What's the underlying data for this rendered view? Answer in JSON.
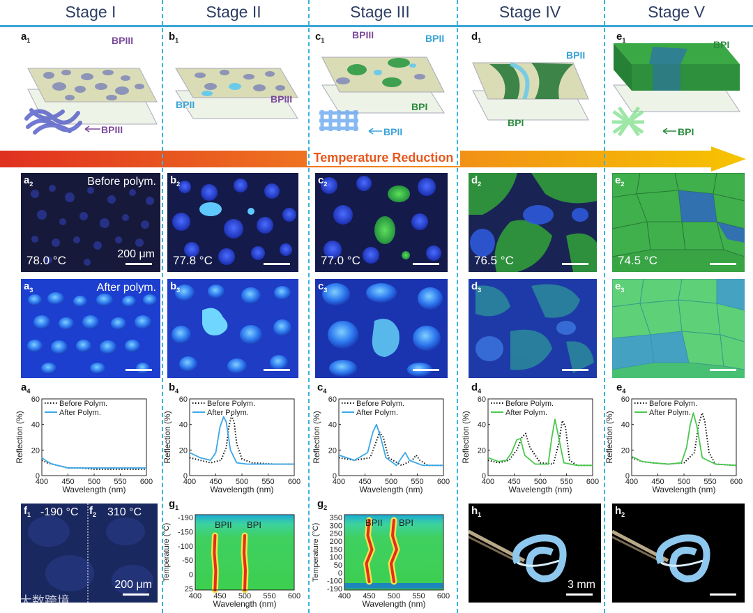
{
  "stages": [
    "Stage I",
    "Stage II",
    "Stage III",
    "Stage IV",
    "Stage V"
  ],
  "arrow_label": "Temperature Reduction",
  "row1": {
    "a1": {
      "label": "a",
      "sub": "1",
      "callouts": [
        "BPIII",
        "BPIII"
      ]
    },
    "b1": {
      "label": "b",
      "sub": "1",
      "callouts": [
        "BPII",
        "BPIII"
      ]
    },
    "c1": {
      "label": "c",
      "sub": "1",
      "callouts": [
        "BPIII",
        "BPII",
        "BPI",
        "BPII"
      ]
    },
    "d1": {
      "label": "d",
      "sub": "1",
      "callouts": [
        "BPII",
        "BPI"
      ]
    },
    "e1": {
      "label": "e",
      "sub": "1",
      "callouts": [
        "BPI",
        "BPI"
      ]
    }
  },
  "row2": [
    {
      "label": "a",
      "sub": "2",
      "temp": "78.0 °C",
      "note": "Before polym.",
      "scale": "200 μm"
    },
    {
      "label": "b",
      "sub": "2",
      "temp": "77.8 °C"
    },
    {
      "label": "c",
      "sub": "2",
      "temp": "77.0 °C"
    },
    {
      "label": "d",
      "sub": "2",
      "temp": "76.5 °C"
    },
    {
      "label": "e",
      "sub": "2",
      "temp": "74.5 °C"
    }
  ],
  "row3": [
    {
      "label": "a",
      "sub": "3",
      "note": "After polym."
    },
    {
      "label": "b",
      "sub": "3"
    },
    {
      "label": "c",
      "sub": "3"
    },
    {
      "label": "d",
      "sub": "3"
    },
    {
      "label": "e",
      "sub": "3"
    }
  ],
  "row4_labels": [
    {
      "label": "a",
      "sub": "4"
    },
    {
      "label": "b",
      "sub": "4"
    },
    {
      "label": "c",
      "sub": "4"
    },
    {
      "label": "d",
      "sub": "4"
    },
    {
      "label": "e",
      "sub": "4"
    }
  ],
  "row5": {
    "f1": {
      "label": "f",
      "sub": "1",
      "temp": "-190 °C"
    },
    "f2": {
      "label": "f",
      "sub": "2",
      "temp": "310 °C",
      "scale": "200 μm"
    },
    "g1": {
      "label": "g",
      "sub": "1",
      "peaks": [
        "BPII",
        "BPI"
      ]
    },
    "g2": {
      "label": "g",
      "sub": "2",
      "peaks": [
        "BPII",
        "BPI"
      ]
    },
    "h1": {
      "label": "h",
      "sub": "1",
      "scale": "3 mm"
    },
    "h2": {
      "label": "h",
      "sub": "2"
    }
  },
  "watermark": "大数跨境",
  "chart_data": [
    {
      "type": "line",
      "id": "a4",
      "xlabel": "Wavelength (nm)",
      "ylabel": "Reflection (%)",
      "xlim": [
        400,
        600
      ],
      "ylim": [
        0,
        60
      ],
      "xticks": [
        400,
        450,
        500,
        550,
        600
      ],
      "yticks": [
        0,
        20,
        40,
        60
      ],
      "legend": [
        "Before Polym.",
        "After Polym."
      ],
      "series": [
        {
          "name": "Before Polym.",
          "x": [
            400,
            410,
            420,
            430,
            440,
            450,
            475,
            500,
            550,
            600
          ],
          "y": [
            12,
            10,
            9,
            8,
            7,
            6,
            6,
            5,
            5,
            5
          ]
        },
        {
          "name": "After Polym.",
          "x": [
            400,
            410,
            420,
            430,
            440,
            450,
            475,
            500,
            550,
            600
          ],
          "y": [
            14,
            11,
            9,
            8,
            7,
            6,
            6,
            6,
            6,
            6
          ]
        }
      ]
    },
    {
      "type": "line",
      "id": "b4",
      "xlabel": "Wavelength (nm)",
      "ylabel": "Reflection (%)",
      "xlim": [
        400,
        600
      ],
      "ylim": [
        0,
        60
      ],
      "xticks": [
        400,
        450,
        500,
        550,
        600
      ],
      "yticks": [
        0,
        20,
        40,
        60
      ],
      "legend": [
        "Before Polym.",
        "After Polym."
      ],
      "series": [
        {
          "name": "Before Polym.",
          "x": [
            400,
            420,
            440,
            460,
            470,
            475,
            480,
            485,
            490,
            500,
            520,
            560,
            600
          ],
          "y": [
            14,
            12,
            10,
            12,
            22,
            38,
            47,
            42,
            25,
            13,
            10,
            9,
            9
          ]
        },
        {
          "name": "After Polym.",
          "x": [
            400,
            420,
            440,
            450,
            458,
            465,
            470,
            478,
            490,
            510,
            560,
            600
          ],
          "y": [
            18,
            14,
            12,
            18,
            38,
            46,
            42,
            20,
            10,
            9,
            9,
            9
          ]
        }
      ]
    },
    {
      "type": "line",
      "id": "c4",
      "xlabel": "Wavelength (nm)",
      "ylabel": "Reflection (%)",
      "xlim": [
        400,
        600
      ],
      "ylim": [
        0,
        60
      ],
      "xticks": [
        400,
        450,
        500,
        550,
        600
      ],
      "yticks": [
        0,
        20,
        40,
        60
      ],
      "legend": [
        "Before Polym.",
        "After Polym."
      ],
      "series": [
        {
          "name": "Before Polym.",
          "x": [
            400,
            430,
            460,
            470,
            478,
            485,
            495,
            520,
            540,
            548,
            555,
            570,
            600
          ],
          "y": [
            14,
            12,
            14,
            25,
            34,
            30,
            14,
            8,
            12,
            16,
            12,
            8,
            8
          ]
        },
        {
          "name": "After Polym.",
          "x": [
            400,
            430,
            455,
            465,
            472,
            480,
            490,
            510,
            520,
            527,
            535,
            560,
            600
          ],
          "y": [
            16,
            12,
            18,
            34,
            40,
            30,
            14,
            8,
            14,
            18,
            12,
            8,
            8
          ]
        }
      ]
    },
    {
      "type": "line",
      "id": "d4",
      "xlabel": "Wavelength (nm)",
      "ylabel": "Reflection (%)",
      "xlim": [
        400,
        600
      ],
      "ylim": [
        0,
        60
      ],
      "xticks": [
        400,
        450,
        500,
        550,
        600
      ],
      "yticks": [
        0,
        20,
        40,
        60
      ],
      "legend": [
        "Before Polym.",
        "After Polym."
      ],
      "series": [
        {
          "name": "Before Polym.",
          "x": [
            400,
            420,
            440,
            455,
            465,
            472,
            480,
            500,
            525,
            535,
            542,
            548,
            556,
            570,
            600
          ],
          "y": [
            12,
            10,
            12,
            20,
            30,
            33,
            22,
            10,
            9,
            25,
            43,
            38,
            12,
            8,
            8
          ]
        },
        {
          "name": "After Polym.",
          "x": [
            400,
            420,
            435,
            445,
            455,
            462,
            470,
            490,
            515,
            522,
            528,
            535,
            545,
            570,
            600
          ],
          "y": [
            14,
            11,
            12,
            18,
            28,
            29,
            16,
            9,
            9,
            30,
            44,
            30,
            10,
            8,
            8
          ]
        }
      ]
    },
    {
      "type": "line",
      "id": "e4",
      "xlabel": "Wavelength (nm)",
      "ylabel": "Reflection (%)",
      "xlim": [
        400,
        600
      ],
      "ylim": [
        0,
        60
      ],
      "xticks": [
        400,
        450,
        500,
        550,
        600
      ],
      "yticks": [
        0,
        20,
        40,
        60
      ],
      "legend": [
        "Before Polym.",
        "After Polym."
      ],
      "series": [
        {
          "name": "Before Polym.",
          "x": [
            400,
            420,
            440,
            470,
            500,
            520,
            528,
            535,
            540,
            548,
            560,
            600
          ],
          "y": [
            14,
            11,
            10,
            9,
            10,
            18,
            40,
            49,
            42,
            18,
            9,
            8
          ]
        },
        {
          "name": "After Polym.",
          "x": [
            400,
            420,
            440,
            470,
            495,
            505,
            512,
            518,
            525,
            535,
            560,
            600
          ],
          "y": [
            15,
            11,
            10,
            9,
            10,
            22,
            40,
            49,
            38,
            14,
            9,
            8
          ]
        }
      ]
    },
    {
      "type": "heatmap",
      "id": "g1",
      "xlabel": "Wavelength (nm)",
      "ylabel": "Temperature (°C)",
      "xlim": [
        400,
        600
      ],
      "xticks": [
        400,
        450,
        500,
        550,
        600
      ],
      "yticks": [
        -190,
        -150,
        -100,
        -50,
        0,
        25
      ],
      "peaks": {
        "BPII": 440,
        "BPI": 500
      }
    },
    {
      "type": "heatmap",
      "id": "g2",
      "xlabel": "Wavelength (nm)",
      "ylabel": "Temperature (°C)",
      "xlim": [
        400,
        600
      ],
      "xticks": [
        400,
        450,
        500,
        550,
        600
      ],
      "yticks": [
        350,
        300,
        250,
        200,
        150,
        100,
        50,
        0,
        -100,
        -190
      ],
      "peaks": {
        "BPII": 450,
        "BPI": 500
      }
    }
  ]
}
